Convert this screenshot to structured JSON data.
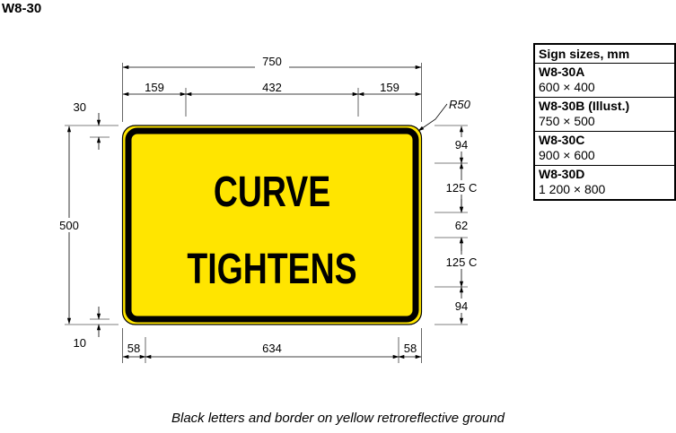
{
  "title": "W8-30",
  "sign": {
    "line1": "CURVE",
    "line2": "TIGHTENS",
    "background_color": "#FFE500",
    "legend_color": "#000000"
  },
  "dimensions": {
    "overall_width": "750",
    "left_offset": "159",
    "text_width": "432",
    "right_offset": "159",
    "corner_radius": "R50",
    "border_inset_top": "30",
    "overall_height": "500",
    "border_inset_bottom": "10",
    "left_margin": "58",
    "inner_width": "634",
    "right_margin": "58",
    "top_gap": "94",
    "line1_height": "125 C",
    "line_gap": "62",
    "line2_height": "125 C",
    "bottom_gap": "94"
  },
  "sizes_table": {
    "header": "Sign sizes, mm",
    "rows": [
      {
        "code": "W8-30A",
        "size": "600 × 400"
      },
      {
        "code": "W8-30B (Illust.)",
        "size": "750 × 500"
      },
      {
        "code": "W8-30C",
        "size": "900 × 600"
      },
      {
        "code": "W8-30D",
        "size": "1 200 × 800"
      }
    ]
  },
  "caption": "Black letters and border on yellow retroreflective ground"
}
